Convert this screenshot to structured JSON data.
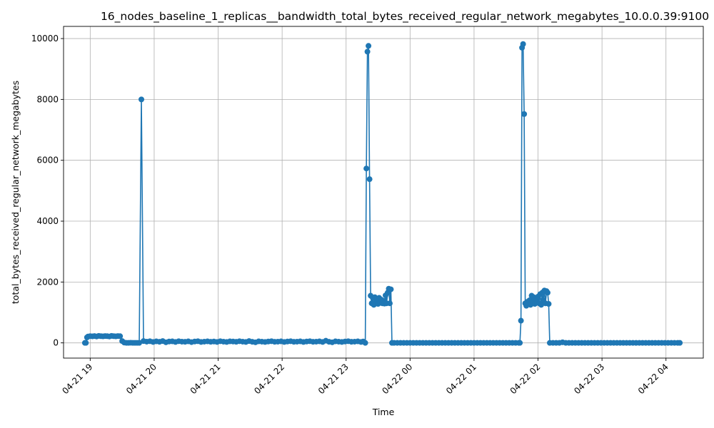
{
  "chart_data": {
    "type": "line",
    "title": "16_nodes_baseline_1_replicas__bandwidth_total_bytes_received_regular_network_megabytes_10.0.0.39:9100",
    "xlabel": "Time",
    "ylabel": "total_bytes_received_regular_network_megabytes",
    "x_is_time": true,
    "xlim": [
      "2023-04-21T18:35:00",
      "2023-04-22T04:35:00"
    ],
    "ylim": [
      -500,
      10400
    ],
    "x_ticks": [
      {
        "t": "2023-04-21T19:00:00",
        "label": "04-21 19"
      },
      {
        "t": "2023-04-21T20:00:00",
        "label": "04-21 20"
      },
      {
        "t": "2023-04-21T21:00:00",
        "label": "04-21 21"
      },
      {
        "t": "2023-04-21T22:00:00",
        "label": "04-21 22"
      },
      {
        "t": "2023-04-21T23:00:00",
        "label": "04-21 23"
      },
      {
        "t": "2023-04-22T00:00:00",
        "label": "04-22 00"
      },
      {
        "t": "2023-04-22T01:00:00",
        "label": "04-22 01"
      },
      {
        "t": "2023-04-22T02:00:00",
        "label": "04-22 02"
      },
      {
        "t": "2023-04-22T03:00:00",
        "label": "04-22 03"
      },
      {
        "t": "2023-04-22T04:00:00",
        "label": "04-22 04"
      }
    ],
    "y_ticks": [
      {
        "v": 0,
        "label": "0"
      },
      {
        "v": 2000,
        "label": "2000"
      },
      {
        "v": 4000,
        "label": "4000"
      },
      {
        "v": 6000,
        "label": "6000"
      },
      {
        "v": 8000,
        "label": "8000"
      },
      {
        "v": 10000,
        "label": "10000"
      }
    ],
    "grid": true,
    "series": [
      {
        "color": "#1f77b4",
        "marker": "circle",
        "points": [
          [
            "2023-04-21T18:55:00",
            0
          ],
          [
            "2023-04-21T18:56:00",
            0
          ],
          [
            "2023-04-21T18:57:00",
            180
          ],
          [
            "2023-04-21T18:58:00",
            210
          ],
          [
            "2023-04-21T19:00:00",
            220
          ],
          [
            "2023-04-21T19:02:00",
            215
          ],
          [
            "2023-04-21T19:04:00",
            225
          ],
          [
            "2023-04-21T19:06:00",
            210
          ],
          [
            "2023-04-21T19:08:00",
            230
          ],
          [
            "2023-04-21T19:10:00",
            220
          ],
          [
            "2023-04-21T19:12:00",
            215
          ],
          [
            "2023-04-21T19:14:00",
            225
          ],
          [
            "2023-04-21T19:16:00",
            220
          ],
          [
            "2023-04-21T19:18:00",
            210
          ],
          [
            "2023-04-21T19:20:00",
            230
          ],
          [
            "2023-04-21T19:22:00",
            220
          ],
          [
            "2023-04-21T19:24:00",
            215
          ],
          [
            "2023-04-21T19:26:00",
            225
          ],
          [
            "2023-04-21T19:28:00",
            220
          ],
          [
            "2023-04-21T19:30:00",
            60
          ],
          [
            "2023-04-21T19:32:00",
            10
          ],
          [
            "2023-04-21T19:34:00",
            0
          ],
          [
            "2023-04-21T19:36:00",
            0
          ],
          [
            "2023-04-21T19:38:00",
            5
          ],
          [
            "2023-04-21T19:40:00",
            0
          ],
          [
            "2023-04-21T19:42:00",
            0
          ],
          [
            "2023-04-21T19:44:00",
            0
          ],
          [
            "2023-04-21T19:46:00",
            0
          ],
          [
            "2023-04-21T19:48:00",
            8000
          ],
          [
            "2023-04-21T19:50:00",
            60
          ],
          [
            "2023-04-21T19:53:00",
            40
          ],
          [
            "2023-04-21T19:56:00",
            55
          ],
          [
            "2023-04-21T19:59:00",
            30
          ],
          [
            "2023-04-21T20:02:00",
            50
          ],
          [
            "2023-04-21T20:05:00",
            35
          ],
          [
            "2023-04-21T20:08:00",
            60
          ],
          [
            "2023-04-21T20:11:00",
            20
          ],
          [
            "2023-04-21T20:14:00",
            45
          ],
          [
            "2023-04-21T20:17:00",
            50
          ],
          [
            "2023-04-21T20:20:00",
            30
          ],
          [
            "2023-04-21T20:23:00",
            55
          ],
          [
            "2023-04-21T20:26:00",
            40
          ],
          [
            "2023-04-21T20:29:00",
            35
          ],
          [
            "2023-04-21T20:32:00",
            50
          ],
          [
            "2023-04-21T20:35:00",
            25
          ],
          [
            "2023-04-21T20:38:00",
            45
          ],
          [
            "2023-04-21T20:41:00",
            55
          ],
          [
            "2023-04-21T20:44:00",
            30
          ],
          [
            "2023-04-21T20:47:00",
            40
          ],
          [
            "2023-04-21T20:50:00",
            50
          ],
          [
            "2023-04-21T20:53:00",
            35
          ],
          [
            "2023-04-21T20:56:00",
            45
          ],
          [
            "2023-04-21T20:59:00",
            30
          ],
          [
            "2023-04-21T21:02:00",
            55
          ],
          [
            "2023-04-21T21:05:00",
            40
          ],
          [
            "2023-04-21T21:08:00",
            30
          ],
          [
            "2023-04-21T21:11:00",
            50
          ],
          [
            "2023-04-21T21:14:00",
            45
          ],
          [
            "2023-04-21T21:17:00",
            35
          ],
          [
            "2023-04-21T21:20:00",
            55
          ],
          [
            "2023-04-21T21:23:00",
            40
          ],
          [
            "2023-04-21T21:26:00",
            30
          ],
          [
            "2023-04-21T21:29:00",
            60
          ],
          [
            "2023-04-21T21:32:00",
            35
          ],
          [
            "2023-04-21T21:35:00",
            20
          ],
          [
            "2023-04-21T21:38:00",
            50
          ],
          [
            "2023-04-21T21:41:00",
            40
          ],
          [
            "2023-04-21T21:44:00",
            30
          ],
          [
            "2023-04-21T21:47:00",
            45
          ],
          [
            "2023-04-21T21:50:00",
            55
          ],
          [
            "2023-04-21T21:53:00",
            35
          ],
          [
            "2023-04-21T21:56:00",
            40
          ],
          [
            "2023-04-21T21:59:00",
            50
          ],
          [
            "2023-04-21T22:02:00",
            30
          ],
          [
            "2023-04-21T22:05:00",
            45
          ],
          [
            "2023-04-21T22:08:00",
            55
          ],
          [
            "2023-04-21T22:11:00",
            35
          ],
          [
            "2023-04-21T22:14:00",
            40
          ],
          [
            "2023-04-21T22:17:00",
            50
          ],
          [
            "2023-04-21T22:20:00",
            30
          ],
          [
            "2023-04-21T22:23:00",
            45
          ],
          [
            "2023-04-21T22:26:00",
            55
          ],
          [
            "2023-04-21T22:29:00",
            35
          ],
          [
            "2023-04-21T22:32:00",
            40
          ],
          [
            "2023-04-21T22:35:00",
            50
          ],
          [
            "2023-04-21T22:38:00",
            30
          ],
          [
            "2023-04-21T22:41:00",
            70
          ],
          [
            "2023-04-21T22:44:00",
            35
          ],
          [
            "2023-04-21T22:47:00",
            20
          ],
          [
            "2023-04-21T22:50:00",
            50
          ],
          [
            "2023-04-21T22:53:00",
            40
          ],
          [
            "2023-04-21T22:56:00",
            30
          ],
          [
            "2023-04-21T22:59:00",
            45
          ],
          [
            "2023-04-21T23:02:00",
            55
          ],
          [
            "2023-04-21T23:05:00",
            35
          ],
          [
            "2023-04-21T23:08:00",
            40
          ],
          [
            "2023-04-21T23:11:00",
            50
          ],
          [
            "2023-04-21T23:14:00",
            30
          ],
          [
            "2023-04-21T23:16:00",
            45
          ],
          [
            "2023-04-21T23:18:00",
            0
          ],
          [
            "2023-04-21T23:19:00",
            5730
          ],
          [
            "2023-04-21T23:20:00",
            9570
          ],
          [
            "2023-04-21T23:21:00",
            9760
          ],
          [
            "2023-04-21T23:22:00",
            5380
          ],
          [
            "2023-04-21T23:23:00",
            1550
          ],
          [
            "2023-04-21T23:24:00",
            1300
          ],
          [
            "2023-04-21T23:25:00",
            1480
          ],
          [
            "2023-04-21T23:26:00",
            1250
          ],
          [
            "2023-04-21T23:27:00",
            1500
          ],
          [
            "2023-04-21T23:28:00",
            1300
          ],
          [
            "2023-04-21T23:29:00",
            1450
          ],
          [
            "2023-04-21T23:30:00",
            1280
          ],
          [
            "2023-04-21T23:31:00",
            1480
          ],
          [
            "2023-04-21T23:32:00",
            1320
          ],
          [
            "2023-04-21T23:33:00",
            1420
          ],
          [
            "2023-04-21T23:34:00",
            1300
          ],
          [
            "2023-04-21T23:35:00",
            1380
          ],
          [
            "2023-04-21T23:36:00",
            1290
          ],
          [
            "2023-04-21T23:37:00",
            1560
          ],
          [
            "2023-04-21T23:38:00",
            1300
          ],
          [
            "2023-04-21T23:39:00",
            1650
          ],
          [
            "2023-04-21T23:40:00",
            1780
          ],
          [
            "2023-04-21T23:41:00",
            1300
          ],
          [
            "2023-04-21T23:42:00",
            1760
          ],
          [
            "2023-04-21T23:43:00",
            0
          ],
          [
            "2023-04-21T23:45:00",
            0
          ],
          [
            "2023-04-21T23:48:00",
            0
          ],
          [
            "2023-04-21T23:51:00",
            0
          ],
          [
            "2023-04-21T23:54:00",
            0
          ],
          [
            "2023-04-21T23:57:00",
            0
          ],
          [
            "2023-04-22T00:00:00",
            0
          ],
          [
            "2023-04-22T00:03:00",
            0
          ],
          [
            "2023-04-22T00:06:00",
            0
          ],
          [
            "2023-04-22T00:09:00",
            0
          ],
          [
            "2023-04-22T00:12:00",
            0
          ],
          [
            "2023-04-22T00:15:00",
            0
          ],
          [
            "2023-04-22T00:18:00",
            0
          ],
          [
            "2023-04-22T00:21:00",
            0
          ],
          [
            "2023-04-22T00:24:00",
            0
          ],
          [
            "2023-04-22T00:27:00",
            0
          ],
          [
            "2023-04-22T00:30:00",
            0
          ],
          [
            "2023-04-22T00:33:00",
            0
          ],
          [
            "2023-04-22T00:36:00",
            0
          ],
          [
            "2023-04-22T00:39:00",
            0
          ],
          [
            "2023-04-22T00:42:00",
            0
          ],
          [
            "2023-04-22T00:45:00",
            0
          ],
          [
            "2023-04-22T00:48:00",
            0
          ],
          [
            "2023-04-22T00:51:00",
            0
          ],
          [
            "2023-04-22T00:54:00",
            0
          ],
          [
            "2023-04-22T00:57:00",
            0
          ],
          [
            "2023-04-22T01:00:00",
            0
          ],
          [
            "2023-04-22T01:03:00",
            0
          ],
          [
            "2023-04-22T01:06:00",
            0
          ],
          [
            "2023-04-22T01:09:00",
            0
          ],
          [
            "2023-04-22T01:12:00",
            0
          ],
          [
            "2023-04-22T01:15:00",
            0
          ],
          [
            "2023-04-22T01:18:00",
            0
          ],
          [
            "2023-04-22T01:21:00",
            0
          ],
          [
            "2023-04-22T01:24:00",
            0
          ],
          [
            "2023-04-22T01:27:00",
            0
          ],
          [
            "2023-04-22T01:30:00",
            0
          ],
          [
            "2023-04-22T01:33:00",
            0
          ],
          [
            "2023-04-22T01:36:00",
            0
          ],
          [
            "2023-04-22T01:39:00",
            0
          ],
          [
            "2023-04-22T01:42:00",
            0
          ],
          [
            "2023-04-22T01:43:00",
            0
          ],
          [
            "2023-04-22T01:44:00",
            730
          ],
          [
            "2023-04-22T01:45:00",
            9700
          ],
          [
            "2023-04-22T01:46:00",
            9820
          ],
          [
            "2023-04-22T01:47:00",
            7520
          ],
          [
            "2023-04-22T01:48:00",
            1300
          ],
          [
            "2023-04-22T01:49:00",
            1220
          ],
          [
            "2023-04-22T01:50:00",
            1350
          ],
          [
            "2023-04-22T01:51:00",
            1300
          ],
          [
            "2023-04-22T01:52:00",
            1400
          ],
          [
            "2023-04-22T01:53:00",
            1250
          ],
          [
            "2023-04-22T01:54:00",
            1550
          ],
          [
            "2023-04-22T01:55:00",
            1300
          ],
          [
            "2023-04-22T01:56:00",
            1500
          ],
          [
            "2023-04-22T01:57:00",
            1280
          ],
          [
            "2023-04-22T01:58:00",
            1450
          ],
          [
            "2023-04-22T01:59:00",
            1320
          ],
          [
            "2023-04-22T02:00:00",
            1520
          ],
          [
            "2023-04-22T02:01:00",
            1300
          ],
          [
            "2023-04-22T02:02:00",
            1600
          ],
          [
            "2023-04-22T02:03:00",
            1250
          ],
          [
            "2023-04-22T02:04:00",
            1650
          ],
          [
            "2023-04-22T02:05:00",
            1400
          ],
          [
            "2023-04-22T02:06:00",
            1720
          ],
          [
            "2023-04-22T02:07:00",
            1300
          ],
          [
            "2023-04-22T02:08:00",
            1700
          ],
          [
            "2023-04-22T02:09:00",
            1650
          ],
          [
            "2023-04-22T02:10:00",
            1280
          ],
          [
            "2023-04-22T02:11:00",
            0
          ],
          [
            "2023-04-22T02:14:00",
            0
          ],
          [
            "2023-04-22T02:17:00",
            0
          ],
          [
            "2023-04-22T02:20:00",
            0
          ],
          [
            "2023-04-22T02:23:00",
            20
          ],
          [
            "2023-04-22T02:26:00",
            0
          ],
          [
            "2023-04-22T02:29:00",
            0
          ],
          [
            "2023-04-22T02:32:00",
            0
          ],
          [
            "2023-04-22T02:35:00",
            0
          ],
          [
            "2023-04-22T02:38:00",
            0
          ],
          [
            "2023-04-22T02:41:00",
            0
          ],
          [
            "2023-04-22T02:44:00",
            0
          ],
          [
            "2023-04-22T02:47:00",
            0
          ],
          [
            "2023-04-22T02:50:00",
            0
          ],
          [
            "2023-04-22T02:53:00",
            0
          ],
          [
            "2023-04-22T02:56:00",
            0
          ],
          [
            "2023-04-22T02:59:00",
            0
          ],
          [
            "2023-04-22T03:02:00",
            0
          ],
          [
            "2023-04-22T03:05:00",
            0
          ],
          [
            "2023-04-22T03:08:00",
            0
          ],
          [
            "2023-04-22T03:11:00",
            0
          ],
          [
            "2023-04-22T03:14:00",
            0
          ],
          [
            "2023-04-22T03:17:00",
            0
          ],
          [
            "2023-04-22T03:20:00",
            0
          ],
          [
            "2023-04-22T03:23:00",
            0
          ],
          [
            "2023-04-22T03:26:00",
            0
          ],
          [
            "2023-04-22T03:29:00",
            0
          ],
          [
            "2023-04-22T03:32:00",
            0
          ],
          [
            "2023-04-22T03:35:00",
            0
          ],
          [
            "2023-04-22T03:38:00",
            0
          ],
          [
            "2023-04-22T03:41:00",
            0
          ],
          [
            "2023-04-22T03:44:00",
            0
          ],
          [
            "2023-04-22T03:47:00",
            0
          ],
          [
            "2023-04-22T03:50:00",
            0
          ],
          [
            "2023-04-22T03:53:00",
            0
          ],
          [
            "2023-04-22T03:56:00",
            0
          ],
          [
            "2023-04-22T03:59:00",
            0
          ],
          [
            "2023-04-22T04:02:00",
            0
          ],
          [
            "2023-04-22T04:05:00",
            0
          ],
          [
            "2023-04-22T04:08:00",
            0
          ],
          [
            "2023-04-22T04:11:00",
            0
          ],
          [
            "2023-04-22T04:13:00",
            0
          ]
        ]
      }
    ]
  }
}
